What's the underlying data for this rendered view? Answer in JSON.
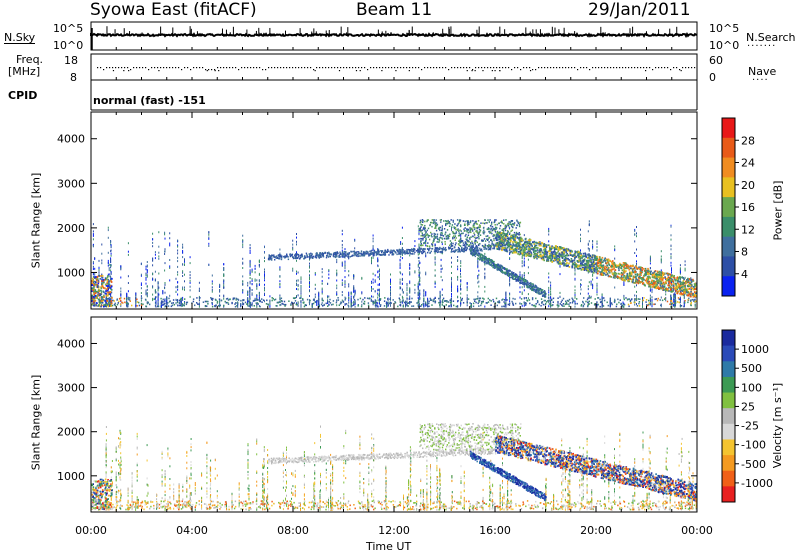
{
  "header": {
    "station": "Syowa East (fitACF)",
    "beam": "Beam 11",
    "date": "29/Jan/2011"
  },
  "noise_panel": {
    "left_label": "N.Sky",
    "right_label": "N.Search",
    "left_ticks": [
      "10^5",
      "10^0"
    ],
    "right_ticks": [
      "10^5",
      "10^0"
    ]
  },
  "freq_panel": {
    "left_label_line1": "Freq.",
    "left_label_line2": "[MHz]",
    "right_label": "Nave",
    "left_ticks": [
      "18",
      "8"
    ],
    "right_ticks": [
      "60",
      "0"
    ]
  },
  "cpid": {
    "label": "CPID",
    "value": "normal (fast) -151"
  },
  "colors": {
    "power_scale": [
      "#0a22f0",
      "#2d4fa6",
      "#3f6f9e",
      "#3a8e6a",
      "#6aa84f",
      "#e8c020",
      "#f08c20",
      "#e85a18",
      "#e81818"
    ],
    "velocity_scale": [
      "#1a2a9e",
      "#2a4ab8",
      "#2e7aa8",
      "#3c9a54",
      "#80c040",
      "#b8b8b8",
      "#d8d8d8",
      "#f4c430",
      "#f49a20",
      "#f06018",
      "#e82020"
    ]
  },
  "chart_data": [
    {
      "type": "heatmap",
      "title": "",
      "ylabel": "Slant Range [km]",
      "xlabel": "",
      "colorbar_label": "Power [dB]",
      "colorbar_ticks": [
        "28",
        "24",
        "20",
        "16",
        "12",
        "8",
        "4"
      ],
      "ylim": [
        180,
        4600
      ],
      "y_ticks": [
        "4000",
        "3000",
        "2000",
        "1000"
      ],
      "x_ticks": [
        "00:00",
        "04:00",
        "08:00",
        "12:00",
        "16:00",
        "20:00",
        "00:00"
      ]
    },
    {
      "type": "heatmap",
      "title": "",
      "ylabel": "Slant Range [km]",
      "xlabel": "Time UT",
      "colorbar_label": "Velocity [m s⁻¹]",
      "colorbar_ticks": [
        "1000",
        "500",
        "100",
        "25",
        "-25",
        "-100",
        "-500",
        "-1000"
      ],
      "ylim": [
        180,
        4600
      ],
      "y_ticks": [
        "4000",
        "3000",
        "2000",
        "1000"
      ],
      "x_ticks": [
        "00:00",
        "04:00",
        "08:00",
        "12:00",
        "16:00",
        "20:00",
        "00:00"
      ]
    }
  ]
}
